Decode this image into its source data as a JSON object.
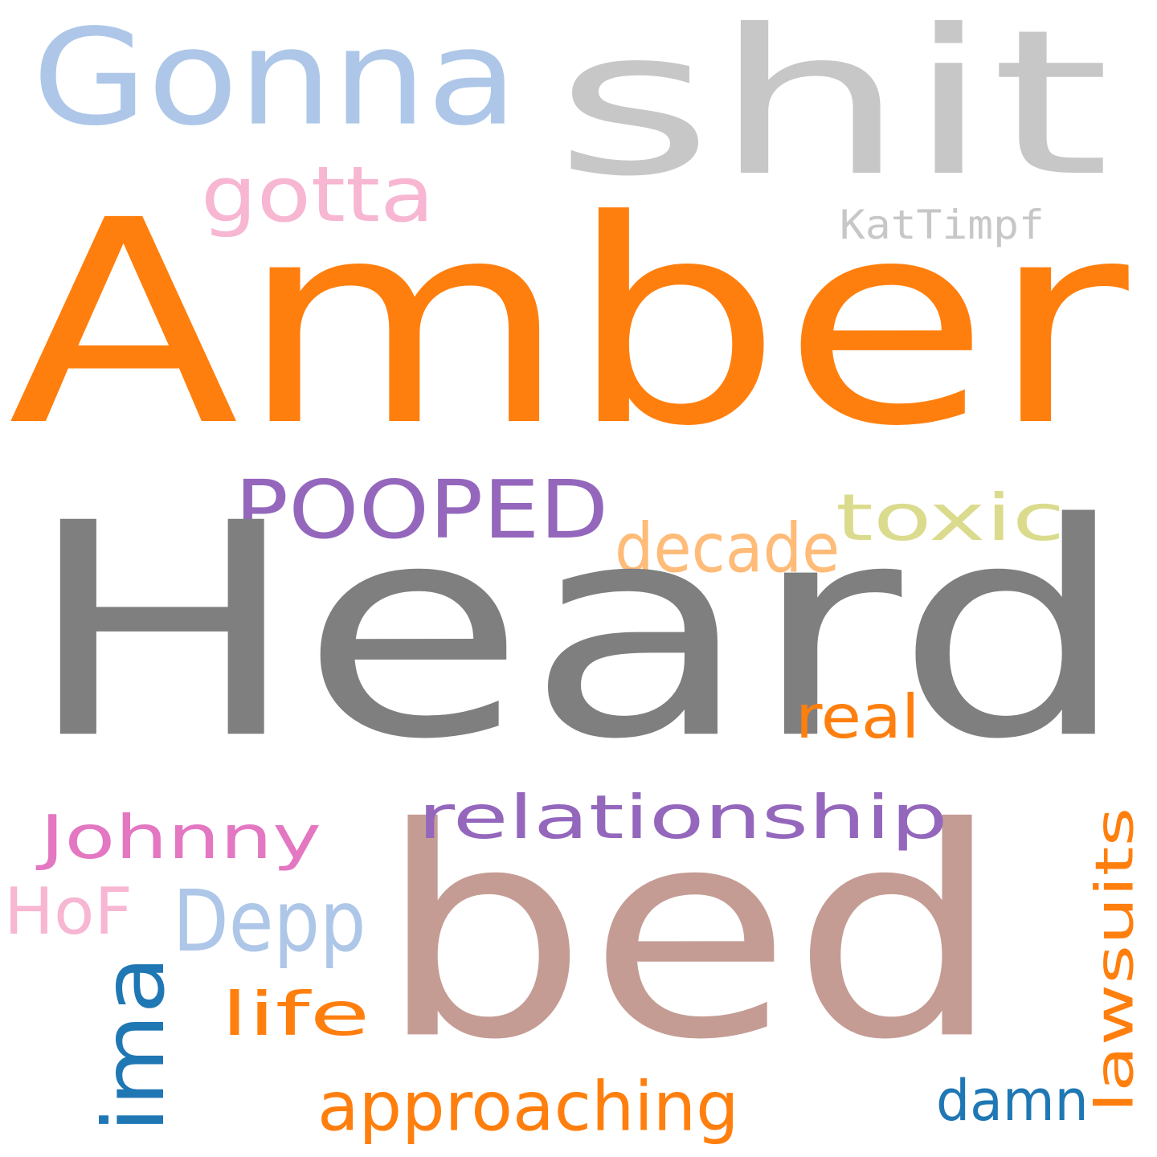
{
  "words": [
    {
      "id": "shit",
      "text": "shit",
      "color": "#c7c7c7"
    },
    {
      "id": "gonna",
      "text": "Gonna",
      "color": "#aec7e8"
    },
    {
      "id": "gotta",
      "text": "gotta",
      "color": "#f7b6d2"
    },
    {
      "id": "kattimpf",
      "text": "KatTimpf",
      "color": "#c7c7c7"
    },
    {
      "id": "amber",
      "text": "Amber",
      "color": "#ff7f0e"
    },
    {
      "id": "pooped",
      "text": "POOPED",
      "color": "#9467bd"
    },
    {
      "id": "toxic",
      "text": "toxic",
      "color": "#dbdb8d"
    },
    {
      "id": "decade",
      "text": "decade",
      "color": "#ffbb78"
    },
    {
      "id": "heard",
      "text": "Heard",
      "color": "#7f7f7f"
    },
    {
      "id": "real",
      "text": "real",
      "color": "#ff7f0e"
    },
    {
      "id": "bed",
      "text": "bed",
      "color": "#c49c94"
    },
    {
      "id": "relationship",
      "text": "relationship",
      "color": "#9467bd"
    },
    {
      "id": "johnny",
      "text": "Johnny",
      "color": "#e377c2"
    },
    {
      "id": "hof",
      "text": "HoF",
      "color": "#f7b6d2"
    },
    {
      "id": "depp",
      "text": "Depp",
      "color": "#aec7e8"
    },
    {
      "id": "lawsuits",
      "text": "lawsuits",
      "color": "#ff7f0e"
    },
    {
      "id": "ima",
      "text": "ima",
      "color": "#1f77b4"
    },
    {
      "id": "life",
      "text": "life",
      "color": "#ff7f0e"
    },
    {
      "id": "approaching",
      "text": "approaching",
      "color": "#ff7f0e"
    },
    {
      "id": "damn",
      "text": "damn",
      "color": "#1f77b4"
    }
  ]
}
